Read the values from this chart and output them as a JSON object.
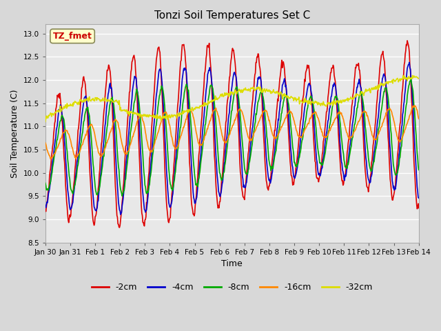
{
  "title": "Tonzi Soil Temperatures Set C",
  "xlabel": "Time",
  "ylabel": "Soil Temperature (C)",
  "annotation_text": "TZ_fmet",
  "annotation_color": "#cc0000",
  "annotation_bg": "#ffffcc",
  "annotation_border": "#888855",
  "ylim": [
    8.5,
    13.2
  ],
  "legend": [
    {
      "label": "-2cm",
      "color": "#dd0000",
      "lw": 1.2
    },
    {
      "label": "-4cm",
      "color": "#0000cc",
      "lw": 1.2
    },
    {
      "label": "-8cm",
      "color": "#00aa00",
      "lw": 1.2
    },
    {
      "label": "-16cm",
      "color": "#ff8800",
      "lw": 1.2
    },
    {
      "label": "-32cm",
      "color": "#dddd00",
      "lw": 1.2
    }
  ],
  "xtick_labels": [
    "Jan 30",
    "Jan 31",
    "Feb 1",
    "Feb 2",
    "Feb 3",
    "Feb 4",
    "Feb 5",
    "Feb 6",
    "Feb 7",
    "Feb 8",
    "Feb 9",
    "Feb 10",
    "Feb 11",
    "Feb 12",
    "Feb 13",
    "Feb 14"
  ],
  "plot_bg": "#e8e8e8",
  "grid_color": "#ffffff",
  "fig_bg": "#d8d8d8"
}
